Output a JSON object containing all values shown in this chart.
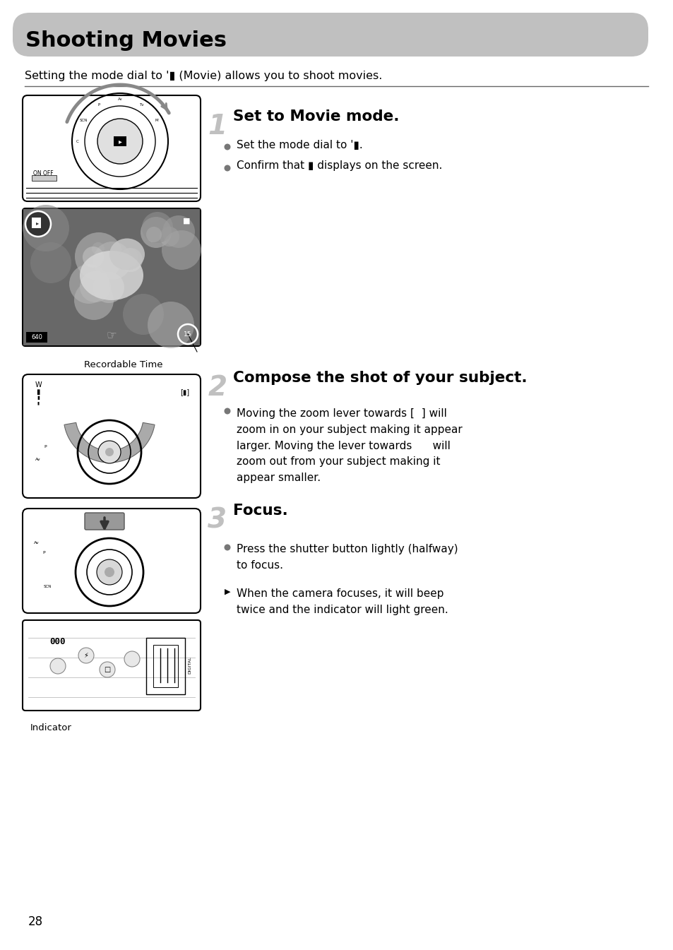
{
  "title": "Shooting Movies",
  "title_bg": "#c0c0c0",
  "page_bg": "#ffffff",
  "intro": "Setting the mode dial to  (Movie) allows you to shoot movies.",
  "step1_title": "Set to Movie mode.",
  "step1_b1": "Set the mode dial to  .",
  "step1_b2": "Confirm that     displays on the screen.",
  "step2_title": "Compose the shot of your subject.",
  "step2_b1_line1": "Moving the zoom lever towards [  ] will",
  "step2_b1_line2": "zoom in on your subject making it appear",
  "step2_b1_line3": "larger. Moving the lever towards      will",
  "step2_b1_line4": "zoom out from your subject making it",
  "step2_b1_line5": "appear smaller.",
  "step3_title": "Focus.",
  "step3_b1_line1": "Press the shutter button lightly (halfway)",
  "step3_b1_line2": "to focus.",
  "step3_b2_line1": "When the camera focuses, it will beep",
  "step3_b2_line2": "twice and the indicator will light green.",
  "recordable_label": "Recordable Time",
  "indicator_label": "Indicator",
  "page_num": "28",
  "img_border": "#000000",
  "img_bg": "#ffffff",
  "photo_bg": "#808080",
  "gray_arc": "#888888",
  "light_gray": "#cccccc",
  "dark_gray": "#444444"
}
